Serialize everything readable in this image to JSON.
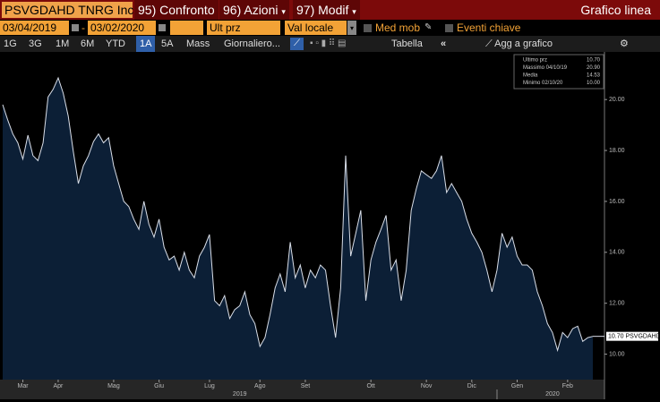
{
  "toolbar": {
    "ticker": "PSVGDAHD TNRG Inc",
    "menu": [
      "95) Confronto",
      "96) Azioni",
      "97) Modif"
    ],
    "title": "Grafico linea"
  },
  "filters": {
    "start_date": "03/04/2019",
    "end_date": "03/02/2020",
    "price_field": "Ult prz",
    "currency": "Val locale",
    "moving_average": "Med mob",
    "key_events": "Eventi chiave"
  },
  "range_buttons": [
    "1G",
    "3G",
    "1M",
    "6M",
    "YTD",
    "1A",
    "5A",
    "Mass"
  ],
  "selected_range": 5,
  "frequency": "Giornaliero...",
  "table": "Tabella",
  "add_to_chart": "Agg a grafico",
  "chart_data": {
    "type": "area",
    "color": "#d9dee8",
    "fill": "#0c1f36",
    "values": [
      19.8,
      19.2,
      18.65,
      18.3,
      17.66,
      18.6,
      17.8,
      17.6,
      18.3,
      20.1,
      20.4,
      20.85,
      20.25,
      19.35,
      17.95,
      16.7,
      17.4,
      17.8,
      18.35,
      18.65,
      18.3,
      18.5,
      17.4,
      16.7,
      16.0,
      15.8,
      15.3,
      14.9,
      16.0,
      15.1,
      14.6,
      15.3,
      14.2,
      13.7,
      13.85,
      13.3,
      14.0,
      13.3,
      13.0,
      13.85,
      14.2,
      14.7,
      12.1,
      11.9,
      12.3,
      11.4,
      11.75,
      11.9,
      12.45,
      11.55,
      11.2,
      10.3,
      10.65,
      11.55,
      12.6,
      13.15,
      12.45,
      14.4,
      13.0,
      13.5,
      12.6,
      13.3,
      13.0,
      13.5,
      13.3,
      11.9,
      10.65,
      12.6,
      17.8,
      13.85,
      14.75,
      15.65,
      12.1,
      13.7,
      14.4,
      14.9,
      15.45,
      13.3,
      13.7,
      12.1,
      13.3,
      15.65,
      16.5,
      17.2,
      17.05,
      16.9,
      17.2,
      17.8,
      16.35,
      16.7,
      16.35,
      16.0,
      15.3,
      14.75,
      14.4,
      14.0,
      13.3,
      12.45,
      13.3,
      14.75,
      14.2,
      14.6,
      13.85,
      13.5,
      13.5,
      13.3,
      12.45,
      11.9,
      11.2,
      10.85,
      10.15,
      10.85,
      10.65,
      11.0,
      11.1,
      10.5,
      10.65,
      10.7
    ],
    "ylim": [
      9,
      21.8
    ],
    "yticks": [
      {
        "value": 10,
        "label": "10.00"
      },
      {
        "value": 12,
        "label": "12.00"
      },
      {
        "value": 14,
        "label": "14.00"
      },
      {
        "value": 16,
        "label": "16.00"
      },
      {
        "value": 18,
        "label": "18.00"
      },
      {
        "value": 20,
        "label": "20.00"
      }
    ],
    "xticks": [
      {
        "value": 4,
        "label": "Mar"
      },
      {
        "value": 11,
        "label": "Apr"
      },
      {
        "value": 22,
        "label": "Mag"
      },
      {
        "value": 31,
        "label": "Giu"
      },
      {
        "value": 41,
        "label": "Lug"
      },
      {
        "value": 51,
        "label": "Ago"
      },
      {
        "value": 60,
        "label": "Set"
      },
      {
        "value": 73,
        "label": "Ott"
      },
      {
        "value": 84,
        "label": "Nov"
      },
      {
        "value": 93,
        "label": "Dic"
      },
      {
        "value": 102,
        "label": "Gen"
      },
      {
        "value": 112,
        "label": "Feb"
      }
    ],
    "year_ticks": [
      {
        "value": 47,
        "label": "2019"
      },
      {
        "value": 109,
        "label": "2020"
      }
    ],
    "year_divider": 98,
    "last_tag": {
      "value": 10.7,
      "label": "10.70 PSVGDAHD"
    },
    "stats": [
      {
        "name": "Ultimo prz",
        "value": "10.70"
      },
      {
        "name": "Massimo 04/10/19",
        "value": "20.90"
      },
      {
        "name": "Media",
        "value": "14.53"
      },
      {
        "name": "Minimo 02/10/20",
        "value": "10.00"
      }
    ]
  }
}
